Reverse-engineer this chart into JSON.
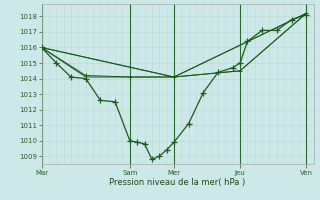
{
  "xlabel": "Pression niveau de la mer( hPa )",
  "bg_color": "#cce8e8",
  "grid_color_minor": "#c0d8d8",
  "grid_color_major": "#a8c8c8",
  "line_color": "#1a5c1a",
  "ylim": [
    1008.5,
    1018.8
  ],
  "yticks": [
    1009,
    1010,
    1011,
    1012,
    1013,
    1014,
    1015,
    1016,
    1017,
    1018
  ],
  "xtick_labels": [
    "Mar",
    "Sam",
    "Mer",
    "Jeu",
    "Ven"
  ],
  "xtick_positions": [
    0,
    12,
    18,
    27,
    36
  ],
  "xlim": [
    0,
    37
  ],
  "vline_color": "#2a6a2a",
  "series1_x": [
    0,
    2,
    4,
    6,
    8,
    10,
    12,
    13,
    14,
    15,
    16,
    17,
    18,
    20,
    22,
    24,
    26,
    27,
    28,
    30,
    32,
    34,
    36
  ],
  "series1_y": [
    1016.0,
    1015.0,
    1014.1,
    1014.0,
    1012.6,
    1012.5,
    1010.0,
    1009.9,
    1009.8,
    1008.8,
    1009.0,
    1009.4,
    1009.9,
    1011.1,
    1013.1,
    1014.4,
    1014.7,
    1015.0,
    1016.4,
    1017.1,
    1017.1,
    1017.8,
    1018.1
  ],
  "series2_x": [
    0,
    6,
    12,
    18,
    27,
    36
  ],
  "series2_y": [
    1016.0,
    1014.2,
    1014.1,
    1014.1,
    1014.5,
    1018.2
  ],
  "series3_x": [
    0,
    18,
    36
  ],
  "series3_y": [
    1016.0,
    1014.1,
    1018.2
  ],
  "series4_x": [
    0,
    18,
    36
  ],
  "series4_y": [
    1016.0,
    1014.1,
    1018.2
  ],
  "series5_x": [
    0,
    6,
    12,
    18,
    27,
    36
  ],
  "series5_y": [
    1016.0,
    1014.1,
    1014.1,
    1014.1,
    1014.5,
    1018.2
  ]
}
